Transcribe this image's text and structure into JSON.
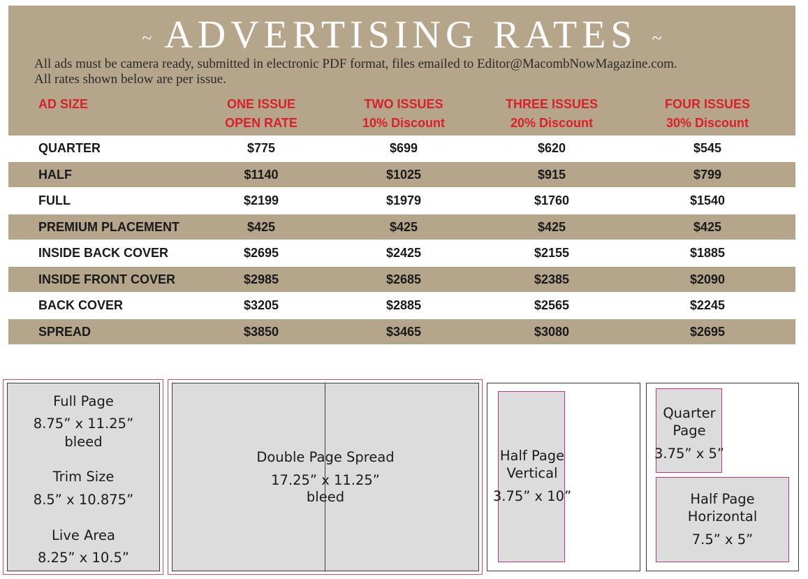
{
  "header": {
    "title": "ADVERTISING RATES",
    "tilde_left": "~",
    "tilde_right": "~",
    "subtitle_line1": "All ads must be camera ready, submitted in electronic PDF format, files emailed to Editor@MacombNowMagazine.com.",
    "subtitle_line2": "All rates shown below are per issue."
  },
  "columns": [
    {
      "line1": "AD SIZE",
      "line2": ""
    },
    {
      "line1": "ONE ISSUE",
      "line2": "OPEN RATE"
    },
    {
      "line1": "TWO ISSUES",
      "line2": "10% Discount"
    },
    {
      "line1": "THREE ISSUES",
      "line2": "20% Discount"
    },
    {
      "line1": "FOUR ISSUES",
      "line2": "30% Discount"
    }
  ],
  "rows": [
    {
      "size": "QUARTER",
      "one": "$775",
      "two": "$699",
      "three": "$620",
      "four": "$545"
    },
    {
      "size": "HALF",
      "one": "$1140",
      "two": "$1025",
      "three": "$915",
      "four": "$799"
    },
    {
      "size": "FULL",
      "one": "$2199",
      "two": "$1979",
      "three": "$1760",
      "four": "$1540"
    },
    {
      "size": "PREMIUM PLACEMENT",
      "one": "$425",
      "two": "$425",
      "three": "$425",
      "four": "$425"
    },
    {
      "size": "INSIDE BACK COVER",
      "one": "$2695",
      "two": "$2425",
      "three": "$2155",
      "four": "$1885"
    },
    {
      "size": "INSIDE FRONT COVER",
      "one": "$2985",
      "two": "$2685",
      "three": "$2385",
      "four": "$2090"
    },
    {
      "size": "BACK COVER",
      "one": "$3205",
      "two": "$2885",
      "three": "$2565",
      "four": "$2245"
    },
    {
      "size": "SPREAD",
      "one": "$3850",
      "two": "$3465",
      "three": "$3080",
      "four": "$2695"
    }
  ],
  "diagrams": {
    "full_page": {
      "title": "Full Page",
      "bleed_dims": "8.75” x 11.25”",
      "bleed_label": "bleed",
      "trim_title": "Trim Size",
      "trim_dims": "8.5” x 10.875”",
      "live_title": "Live Area",
      "live_dims": "8.25” x 10.5”"
    },
    "spread": {
      "title": "Double Page Spread",
      "dims": "17.25” x 11.25”",
      "bleed_label": "bleed"
    },
    "half_vertical": {
      "line1": "Half Page",
      "line2": "Vertical",
      "dims": "3.75” x 10”"
    },
    "quarter": {
      "line1": "Quarter",
      "line2": "Page",
      "dims": "3.75” x 5”"
    },
    "half_horizontal": {
      "line1": "Half Page",
      "line2": "Horizontal",
      "dims": "7.5” x 5”"
    }
  },
  "colors": {
    "band": "#b5a58a",
    "accent_red": "#d9202c",
    "diagram_gray": "#dcdcdd",
    "outline_red": "#e04a57",
    "outline_magenta": "#c8328c"
  }
}
